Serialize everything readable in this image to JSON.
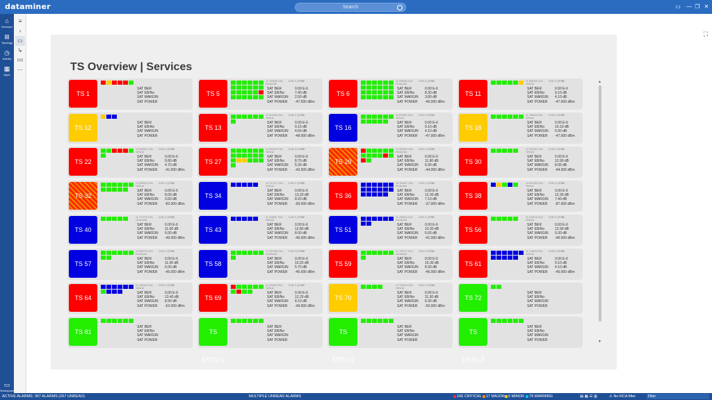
{
  "app": {
    "logo": "dataminer",
    "search_placeholder": "Search"
  },
  "window_buttons": [
    "▭",
    "—",
    "❐",
    "✕"
  ],
  "sidebar": {
    "items": [
      {
        "icon": "⌂",
        "label": "Surveyor",
        "icon_name": "surveyor-icon"
      },
      {
        "icon": "⊞",
        "label": "Topology",
        "icon_name": "topology-icon"
      },
      {
        "icon": "◷",
        "label": "Activity",
        "icon_name": "activity-icon"
      },
      {
        "icon": "▦",
        "label": "Apps",
        "icon_name": "apps-icon"
      }
    ],
    "workspace": {
      "icon": "▭",
      "label": "Workspace"
    }
  },
  "nav2": [
    "≡",
    "›",
    "▭",
    "↳",
    "((•))",
    "⋯"
  ],
  "page": {
    "title": "TS Overview | Services"
  },
  "param_labels": [
    "SAT BER",
    "SAT EB/No",
    "SAT MARGIN",
    "SAT POWER"
  ],
  "colors": {
    "red": "#ff0000",
    "yellow": "#ffcc00",
    "blue": "#0000e0",
    "green": "#22ee00",
    "grey_dot": "#9e9e9e"
  },
  "cards": [
    {
      "name": "TS 1",
      "color": "red",
      "dots": "RYRRRG",
      "meta": null,
      "values": [
        "",
        "",
        "",
        ""
      ]
    },
    {
      "name": "TS 5",
      "color": "red",
      "dots": "GGGGGGGGGGGGGGGGGRGGGGGG",
      "meta": [
        "12.765686 GHz",
        "Horizontal",
        "DVB-S QPSK",
        "3/4"
      ],
      "values": [
        "0.00 E-6",
        "7.40 dB",
        "2.50 dB",
        "-47.000 dBm"
      ]
    },
    {
      "name": "TS 6",
      "color": "red",
      "dots": "GGGGGGGGGGGGGGGGGGGGGGGG",
      "meta": [
        "11.888986 GHz",
        "Horizontal",
        "DVB-S QPSK",
        "3/4"
      ],
      "values": [
        "0.00 E-6",
        "8.30 dB",
        "3.80 dB",
        "-46.000 dBm"
      ]
    },
    {
      "name": "TS 11",
      "color": "red",
      "dots": "GGGGGY",
      "meta": [
        "11.865455 GHz",
        "Vertical",
        "DVB-S QPSK",
        "3/4"
      ],
      "values": [
        "0.00 E-6",
        "9.10 dB",
        "4.10 dB",
        "-47.000 dBm"
      ]
    },
    {
      "name": "TS 12",
      "color": "yellow",
      "dots": "YBB",
      "meta": null,
      "values": [
        "",
        "",
        "",
        ""
      ]
    },
    {
      "name": "TS 13",
      "color": "red",
      "dots": "GGGGGGG",
      "meta": [
        "11.914238 GHz",
        "Vertical",
        "DVB-S QPSK",
        "3/4"
      ],
      "values": [
        "0.00 E-6",
        "9.10 dB",
        "4.60 dB",
        "-48.000 dBm"
      ]
    },
    {
      "name": "TS 16",
      "color": "blue",
      "dots": "GGGGGGGGGGG",
      "meta": [
        "11.843594 GHz",
        "Vertical",
        "DVB-S QPSK",
        "3/4"
      ],
      "values": [
        "0.00 E-6",
        "9.10 dB",
        "4.10 dB",
        "-47.000 dBm"
      ]
    },
    {
      "name": "TS 18",
      "color": "yellow",
      "dots": "GGGGGG",
      "meta": [
        "11.788043 GHz",
        "Vertical",
        "DVB-S QPSK",
        "3/4"
      ],
      "values": [
        "0.00 E-6",
        "10.10 dB",
        "5.90 dB",
        "-47.000 dBm"
      ]
    },
    {
      "name": "TS 22",
      "color": "red",
      "dots": "GGRRRGG",
      "meta": [
        "12.054560 GHz",
        "Vertical",
        "DVB-S QPSK",
        "3/4"
      ],
      "values": [
        "0.00 E-6",
        "9.80 dB",
        "4.70 dB",
        "-41.000 dBm"
      ]
    },
    {
      "name": "TS 27",
      "color": "red",
      "dots": "GGGGGGGGGGGGGYYGGGG",
      "meta": [
        "12.284125 GHz",
        "Vertical",
        "DVB-S2 8PSK",
        "3/4"
      ],
      "values": [
        "0.00 E-6",
        "8.70 dB",
        "5.30 dB",
        "-43.000 dBm"
      ]
    },
    {
      "name": "TS 29",
      "color": "hatch",
      "dots": "RGGGGGGGGGRGRG",
      "meta": [
        "12.308990 GHz",
        "Horizontal",
        "DVB-S QPSK",
        "3/4"
      ],
      "values": [
        "0.00 E-6",
        "11.80 dB",
        "6.90 dB",
        "-44.000 dBm"
      ]
    },
    {
      "name": "TS 30",
      "color": "red",
      "dots": "GGGGG",
      "meta": [
        "12.341352 GHz",
        "Vertical",
        "DVB-S QPSK",
        "3/4"
      ],
      "values": [
        "0.00 E-6",
        "12.90 dB",
        "8.00 dB",
        "-44.000 dBm"
      ]
    },
    {
      "name": "TS 32",
      "color": "hatch",
      "dots": "GGGGGGGGGGG",
      "meta": [
        "12.265616 GHz",
        "Vertical",
        "DVB-S QPSK",
        "3/4"
      ],
      "values": [
        "0.00 E-6",
        "8.00 dB",
        "3.60 dB",
        "-82.000 dBm"
      ]
    },
    {
      "name": "TS 34",
      "color": "blue",
      "dots": "BBBBB",
      "meta": [
        "10.797127 GHz",
        "Vertical",
        "DVB-S QPSK",
        "3/4"
      ],
      "values": [
        "0.00 E-6",
        "13.20 dB",
        "8.20 dB",
        "-99.000 dBm"
      ]
    },
    {
      "name": "TS 36",
      "color": "red",
      "dots": "BBBBBBBBBBBBBBBBB",
      "meta": [
        "10.764997 GHz",
        "Horizontal",
        "DVB-S QPSK",
        "3/4"
      ],
      "values": [
        "0.00 E-6",
        "12.30 dB",
        "7.10 dB",
        "-37.000 dBm"
      ]
    },
    {
      "name": "TS 38",
      "color": "red",
      "dots": "BYGBG",
      "meta": [
        "10.891539 GHz",
        "Vertical",
        "DVB-S QPSK",
        "3/4"
      ],
      "values": [
        "0.00 E-6",
        "12.30 dB",
        "7.40 dB",
        "-87.000 dBm"
      ]
    },
    {
      "name": "TS 40",
      "color": "blue",
      "dots": "GGGGG",
      "meta": [
        "10.771275 GHz",
        "Horizontal",
        "DVB-S QPSK",
        "3/4"
      ],
      "values": [
        "0.00 E-6",
        "11.00 dB",
        "6.00 dB",
        "-49.000 dBm"
      ]
    },
    {
      "name": "TS 43",
      "color": "blue",
      "dots": "BBBBB",
      "meta": [
        "11.228667 GHz",
        "Vertical",
        "DVB-S QPSK",
        "3/4"
      ],
      "values": [
        "0.00 E-6",
        "12.80 dB",
        "8.00 dB",
        "-46.000 dBm"
      ]
    },
    {
      "name": "TS 51",
      "color": "blue",
      "dots": "BBBBBBBB",
      "meta": [
        "11.408316 GHz",
        "Horizontal",
        "DVB-S QPSK",
        "3/4"
      ],
      "values": [
        "0.00 E-6",
        "10.30 dB",
        "5.60 dB",
        "-41.000 dBm"
      ]
    },
    {
      "name": "TS 56",
      "color": "red",
      "dots": "GGGGG",
      "meta": [
        "11.220576 GHz",
        "Vertical",
        "DVB-S QPSK",
        "3/4"
      ],
      "values": [
        "0.00 E-6",
        "12.90 dB",
        "9.30 dB",
        "-46.000 dBm"
      ]
    },
    {
      "name": "TS 57",
      "color": "blue",
      "dots": "GGGGGGGG",
      "meta": [
        "10.856776 GHz",
        "Horizontal",
        "DVB-S QPSK",
        "3/4"
      ],
      "values": [
        "0.00 E-6",
        "11.00 dB",
        "6.00 dB",
        "-45.000 dBm"
      ]
    },
    {
      "name": "TS 58",
      "color": "blue",
      "dots": "GGGGGGG",
      "meta": [
        "12.187548 GHz",
        "Horizontal",
        "DVB-S2 8PSK",
        "3/4"
      ],
      "values": [
        "0.00 E-6",
        "10.20 dB",
        "5.70 dB",
        "-46.000 dBm"
      ]
    },
    {
      "name": "TS 59",
      "color": "red",
      "dots": "GGGGGGG",
      "meta": [
        "11.755727 GHz",
        "Horizontal",
        "DVB-S QPSK",
        "3/4"
      ],
      "values": [
        "0.00 E-6",
        "15.30 dB",
        "8.30 dB",
        "-46.000 dBm"
      ]
    },
    {
      "name": "TS 61",
      "color": "red",
      "dots": "BBBBBBBBBBB",
      "meta": [
        "11.108602 GHz",
        "Vertical",
        "DVB-S QPSK",
        "3/4"
      ],
      "values": [
        "0.00 E-6",
        "9.10 dB",
        "4.10 dB",
        "-46.000 dBm"
      ]
    },
    {
      "name": "TS 64",
      "color": "red",
      "dots": "BBBBBBGBBB",
      "meta": [
        "11.426960 GHz",
        "Vertical",
        "DVB-S QPSK",
        "3/4"
      ],
      "values": [
        "0.00 E-6",
        "13.40 dB",
        "8.90 dB",
        "-62.000 dBm"
      ]
    },
    {
      "name": "TS 69",
      "color": "red",
      "dots": "RGGGGGGRGG",
      "meta": [
        "11.493909 GHz",
        "Vertical",
        "DVB-S QPSK",
        "3/4"
      ],
      "values": [
        "0.00 E-6",
        "12.20 dB",
        "8.10 dB",
        "-49.000 dBm"
      ]
    },
    {
      "name": "TS 70",
      "color": "yellow",
      "dots": "GGGG",
      "meta": [
        "12.726016 GHz",
        "Vertical",
        "DVB-S QPSK",
        "3/4"
      ],
      "values": [
        "0.00 E-6",
        "11.30 dB",
        "6.30 dB",
        "-50.000 dBm"
      ]
    },
    {
      "name": "TS 72",
      "color": "green",
      "dots": "GG",
      "meta": null,
      "values": [
        "",
        "",
        "",
        ""
      ]
    },
    {
      "name": "TS 81",
      "color": "green",
      "dots": "GGGGGG",
      "meta": null,
      "values": [
        "",
        "",
        "",
        ""
      ]
    },
    {
      "name": "TS ERTU-1",
      "color": "green",
      "dots": "GGGGGG",
      "meta": null,
      "values": [
        "",
        "",
        "",
        ""
      ]
    },
    {
      "name": "TS ERTU-2",
      "color": "green",
      "dots": "GGGGGG",
      "meta": null,
      "values": [
        "",
        "",
        "",
        ""
      ]
    },
    {
      "name": "TS ERTU-3",
      "color": "green",
      "dots": "GGGGGG",
      "meta": null,
      "values": [
        "",
        "",
        "",
        ""
      ]
    }
  ],
  "statusbar": {
    "left": "ACTIVE ALARMS: 367 ALARMS (267 UNREAD)",
    "middle": "MULTIPLE UNREAD ALARMS",
    "counts": [
      {
        "text": "166 CRITICAL",
        "color": "#ff3030"
      },
      {
        "text": "17 MAJOR",
        "color": "#ff8c00"
      },
      {
        "text": "5 MINOR",
        "color": "#ffd000"
      },
      {
        "text": "79 WARNING",
        "color": "#00c8ff"
      }
    ],
    "rca": "No RCA filter",
    "filter": "Filter"
  }
}
